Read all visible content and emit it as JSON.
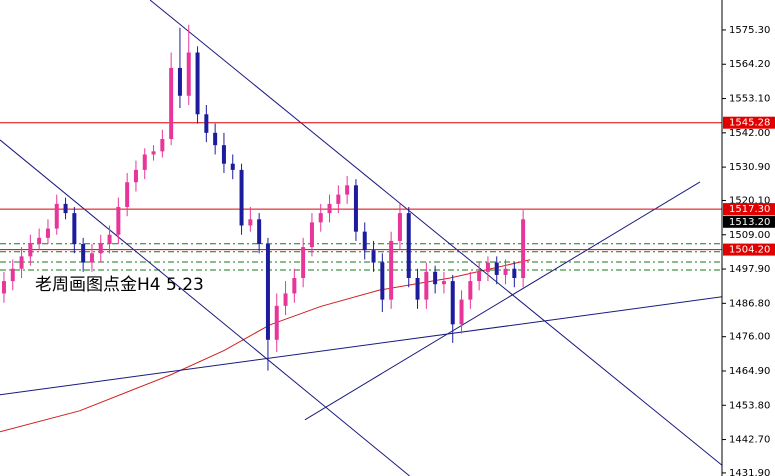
{
  "chart_data": {
    "type": "candlestick",
    "annotation": "老周画图点金H4 5.23",
    "up_color": "#e8359a",
    "down_color": "#1c1c9c",
    "xlim": [
      -0.45,
      81.6
    ],
    "ylim": [
      1430.9,
      1585.0
    ],
    "yticks": [
      {
        "value": 1575.3,
        "label": "1575.30"
      },
      {
        "value": 1564.2,
        "label": "1564.20"
      },
      {
        "value": 1553.1,
        "label": "1553.10"
      },
      {
        "value": 1542.0,
        "label": "1542.00"
      },
      {
        "value": 1530.9,
        "label": "1530.90"
      },
      {
        "value": 1520.1,
        "label": "1520.10"
      },
      {
        "value": 1509.0,
        "label": "1509.00"
      },
      {
        "value": 1497.9,
        "label": "1497.90"
      },
      {
        "value": 1486.8,
        "label": "1486.80"
      },
      {
        "value": 1476.0,
        "label": "1476.00"
      },
      {
        "value": 1464.9,
        "label": "1464.90"
      },
      {
        "value": 1453.8,
        "label": "1453.80"
      },
      {
        "value": 1442.7,
        "label": "1442.70"
      },
      {
        "value": 1431.9,
        "label": "1431.90"
      }
    ],
    "open": [
      1490,
      1494,
      1498,
      1502,
      1506,
      1508,
      1511,
      1519,
      1516,
      1506,
      1500,
      1503,
      1506,
      1509,
      1518,
      1526,
      1530,
      1535,
      1536,
      1540,
      1563,
      1554,
      1568,
      1548,
      1542,
      1538,
      1532,
      1530,
      1512,
      1514,
      1506,
      1475,
      1486,
      1490,
      1495,
      1505,
      1513,
      1516,
      1519,
      1522,
      1525,
      1510,
      1504,
      1500,
      1488,
      1507,
      1516,
      1495,
      1488,
      1497,
      1493,
      1494,
      1480,
      1488,
      1494,
      1497,
      1500,
      1496,
      1498,
      1495
    ],
    "high": [
      1497,
      1501,
      1505,
      1509,
      1511,
      1514,
      1522,
      1521,
      1518,
      1508,
      1506,
      1509,
      1512,
      1521,
      1529,
      1533,
      1537,
      1538,
      1543,
      1568,
      1576,
      1577,
      1570,
      1551,
      1545,
      1542,
      1535,
      1532,
      1518,
      1516,
      1508,
      1490,
      1494,
      1498,
      1508,
      1516,
      1519,
      1522,
      1525,
      1528,
      1527,
      1513,
      1507,
      1503,
      1510,
      1519,
      1518,
      1498,
      1500,
      1499,
      1497,
      1496,
      1491,
      1497,
      1500,
      1502,
      1502,
      1501,
      1500,
      1517
    ],
    "low": [
      1487,
      1491,
      1495,
      1499,
      1504,
      1506,
      1509,
      1514,
      1503,
      1497,
      1497,
      1500,
      1503,
      1506,
      1515,
      1523,
      1527,
      1533,
      1534,
      1538,
      1550,
      1551,
      1545,
      1539,
      1535,
      1529,
      1527,
      1509,
      1510,
      1503,
      1465,
      1471,
      1483,
      1487,
      1492,
      1502,
      1510,
      1513,
      1516,
      1519,
      1507,
      1501,
      1497,
      1484,
      1485,
      1504,
      1492,
      1485,
      1485,
      1490,
      1490,
      1474,
      1477,
      1485,
      1491,
      1494,
      1493,
      1493,
      1492,
      1492
    ],
    "close": [
      1494,
      1498,
      1502,
      1506,
      1508,
      1511,
      1519,
      1516,
      1506,
      1500,
      1503,
      1506,
      1509,
      1518,
      1526,
      1530,
      1535,
      1536,
      1540,
      1563,
      1554,
      1568,
      1548,
      1542,
      1538,
      1532,
      1530,
      1512,
      1514,
      1506,
      1475,
      1486,
      1490,
      1495,
      1505,
      1513,
      1516,
      1519,
      1522,
      1525,
      1510,
      1504,
      1500,
      1488,
      1507,
      1516,
      1495,
      1488,
      1497,
      1493,
      1494,
      1480,
      1488,
      1494,
      1497,
      1500,
      1496,
      1498,
      1495,
      1514
    ],
    "levels": [
      1545.28,
      {
        "value": 1517.3,
        "label": "1517.30"
      },
      {
        "value": 1504.2,
        "label": "1504.20"
      }
    ],
    "level_color": "#e00000",
    "bid": {
      "value": 1513.2,
      "label": "1513.20"
    },
    "guides": {
      "color": "#1a7a1a",
      "values": [
        1506.1,
        1503.5,
        1500.2,
        1497.6
      ]
    },
    "trendlines": {
      "color": "#1a1a80",
      "lines": [
        {
          "x": [
            16.6,
            83.1
          ],
          "y": [
            1585.0,
            1430.9
          ]
        },
        {
          "x": [
            -0.45,
            46.1
          ],
          "y": [
            1539.7,
            1430.9
          ]
        },
        {
          "x": [
            -0.45,
            83.1
          ],
          "y": [
            1457.2,
            1489.5
          ]
        },
        {
          "x": [
            34.2,
            79.1
          ],
          "y": [
            1449.1,
            1526.1
          ]
        }
      ]
    },
    "ma": {
      "color": "#d02020",
      "x": [
        -0.45,
        8.6,
        18.9,
        25.0,
        30.2,
        36.0,
        42.7,
        50.7,
        59.8
      ],
      "values": [
        1445.2,
        1452.0,
        1463.6,
        1471.5,
        1479.8,
        1485.8,
        1491.1,
        1495.0,
        1500.9
      ]
    }
  }
}
